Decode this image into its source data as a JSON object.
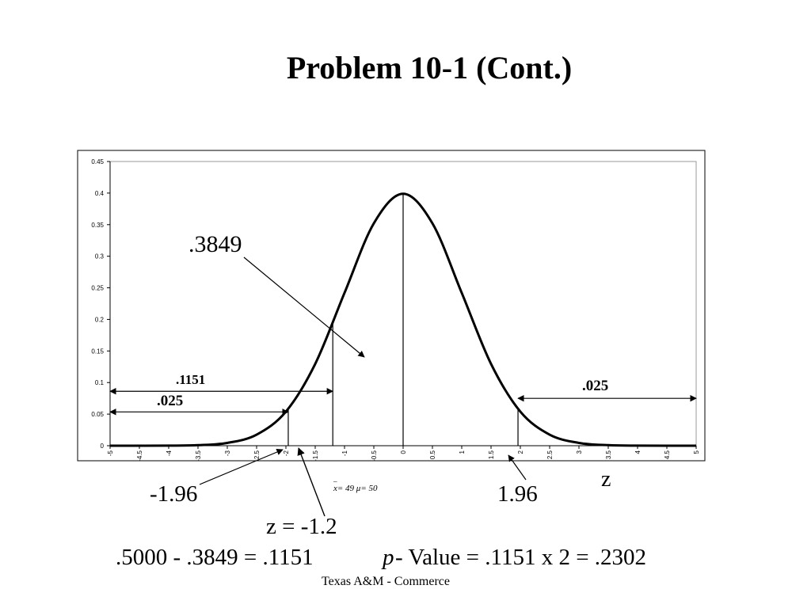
{
  "slide": {
    "title": "Problem 10-1 (Cont.)",
    "footer": "Texas A&M - Commerce"
  },
  "annotations": {
    "area_center": ".3849",
    "left_tail_area": ".1151",
    "left_alpha": ".025",
    "right_alpha": ".025",
    "neg_critical": "-1.96",
    "pos_critical": "1.96",
    "z_label": "z",
    "z_value": "z = -1.2",
    "xbar_mu": "x= 49  μ= 50",
    "calc_left": ".5000 - .3849 = .1151",
    "calc_p_italic": "p",
    "calc_right": "- Value = .1151 x 2 = .2302"
  },
  "chart_data": {
    "type": "line",
    "title": "",
    "xlabel": "",
    "ylabel": "",
    "xlim": [
      -5,
      5
    ],
    "ylim": [
      0,
      0.45
    ],
    "grid": false,
    "x_ticks": [
      "-5",
      "-4.5",
      "-4",
      "-3.5",
      "-3",
      "-2.5",
      "-2",
      "-1.5",
      "-1",
      "-0.5",
      "0",
      "0.5",
      "1",
      "1.5",
      "2",
      "2.5",
      "3",
      "3.5",
      "4",
      "4.5",
      "5"
    ],
    "y_ticks": [
      "0",
      "0.05",
      "0.1",
      "0.15",
      "0.2",
      "0.25",
      "0.3",
      "0.35",
      "0.4",
      "0.45"
    ],
    "series": [
      {
        "x": [
          -5,
          -4.5,
          -4,
          -3.5,
          -3,
          -2.5,
          -2,
          -1.5,
          -1,
          -0.5,
          0,
          0.5,
          1,
          1.5,
          2,
          2.5,
          3,
          3.5,
          4,
          4.5,
          5
        ],
        "values": [
          1.5e-06,
          1.6e-05,
          0.000134,
          0.000873,
          0.004432,
          0.017528,
          0.053991,
          0.129518,
          0.241971,
          0.352065,
          0.398942,
          0.352065,
          0.241971,
          0.129518,
          0.053991,
          0.017528,
          0.004432,
          0.000873,
          0.000134,
          1.6e-05,
          1.5e-06
        ]
      }
    ],
    "vertical_lines": [
      {
        "x": -1.96,
        "y": 0.058
      },
      {
        "x": -1.2,
        "y": 0.194
      },
      {
        "x": 0,
        "y": 0.399
      },
      {
        "x": 1.96,
        "y": 0.058
      }
    ],
    "range_arrows": [
      {
        "label": ".1151",
        "from": -5,
        "to": -1.2,
        "y": 0.0862
      },
      {
        "label": ".025",
        "from": -5,
        "to": -1.96,
        "y": 0.0535
      },
      {
        "label": ".025",
        "from": 1.96,
        "to": 5,
        "y": 0.075
      }
    ]
  }
}
